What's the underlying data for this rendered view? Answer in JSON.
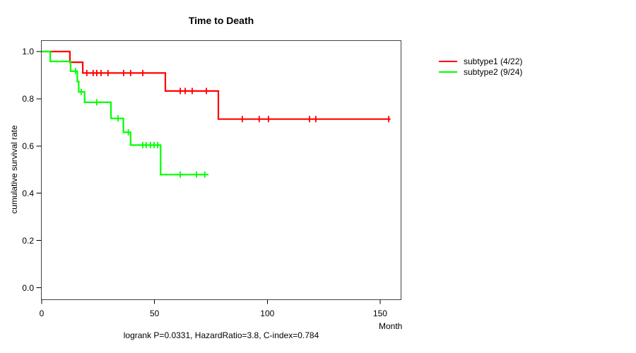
{
  "chart_data": {
    "type": "line",
    "subtype": "kaplan-meier-step-curves",
    "title": "Time to Death",
    "xlabel": "Month",
    "ylabel": "cumulative survival rate",
    "caption": "logrank P=0.0331, HazardRatio=3.8, C-index=0.784",
    "xlim": [
      0,
      160
    ],
    "ylim": [
      0.0,
      1.0
    ],
    "grid": false,
    "legend_position": "right-outside",
    "x_ticks": [
      {
        "value": 0,
        "label": "0"
      },
      {
        "value": 50,
        "label": "50"
      },
      {
        "value": 100,
        "label": "100"
      },
      {
        "value": 150,
        "label": "150"
      }
    ],
    "y_ticks": [
      {
        "value": 1.0,
        "label": "1.0"
      },
      {
        "value": 0.8,
        "label": "0.8"
      },
      {
        "value": 0.6,
        "label": "0.6"
      },
      {
        "value": 0.4,
        "label": "0.4"
      },
      {
        "value": 0.2,
        "label": "0.2"
      },
      {
        "value": 0.0,
        "label": "0.0"
      }
    ],
    "series": [
      {
        "name": "subtype1",
        "legend_label": "subtype1 (4/22)",
        "events_over_n": "4/22",
        "color": "#ff0000",
        "points": [
          [
            0,
            1.0
          ],
          [
            12.5,
            1.0
          ],
          [
            12.5,
            0.955
          ],
          [
            18.2,
            0.955
          ],
          [
            18.2,
            0.909
          ],
          [
            54.8,
            0.909
          ],
          [
            54.8,
            0.833
          ],
          [
            78.3,
            0.833
          ],
          [
            78.3,
            0.714
          ],
          [
            154.6,
            0.714
          ]
        ],
        "censor_marks": [
          [
            20.0,
            0.909
          ],
          [
            22.8,
            0.909
          ],
          [
            24.4,
            0.909
          ],
          [
            26.3,
            0.909
          ],
          [
            29.4,
            0.909
          ],
          [
            36.3,
            0.909
          ],
          [
            39.4,
            0.909
          ],
          [
            44.8,
            0.909
          ],
          [
            61.4,
            0.833
          ],
          [
            63.6,
            0.833
          ],
          [
            66.7,
            0.833
          ],
          [
            73.0,
            0.833
          ],
          [
            88.9,
            0.714
          ],
          [
            96.4,
            0.714
          ],
          [
            100.5,
            0.714
          ],
          [
            118.7,
            0.714
          ],
          [
            121.5,
            0.714
          ],
          [
            153.8,
            0.714
          ]
        ]
      },
      {
        "name": "subtype2",
        "legend_label": "subtype2 (9/24)",
        "events_over_n": "9/24",
        "color": "#00ff00",
        "points": [
          [
            0,
            1.0
          ],
          [
            3.8,
            1.0
          ],
          [
            3.8,
            0.958
          ],
          [
            12.8,
            0.958
          ],
          [
            12.8,
            0.917
          ],
          [
            15.8,
            0.917
          ],
          [
            15.8,
            0.873
          ],
          [
            16.4,
            0.873
          ],
          [
            16.4,
            0.829
          ],
          [
            19.0,
            0.829
          ],
          [
            19.0,
            0.785
          ],
          [
            30.7,
            0.785
          ],
          [
            30.7,
            0.717
          ],
          [
            36.2,
            0.717
          ],
          [
            36.2,
            0.658
          ],
          [
            39.4,
            0.658
          ],
          [
            39.4,
            0.604
          ],
          [
            52.7,
            0.604
          ],
          [
            52.7,
            0.479
          ],
          [
            73.9,
            0.479
          ]
        ],
        "censor_marks": [
          [
            15.0,
            0.917
          ],
          [
            17.5,
            0.829
          ],
          [
            24.4,
            0.785
          ],
          [
            33.8,
            0.717
          ],
          [
            38.4,
            0.658
          ],
          [
            44.8,
            0.604
          ],
          [
            46.3,
            0.604
          ],
          [
            48.2,
            0.604
          ],
          [
            49.8,
            0.604
          ],
          [
            51.4,
            0.604
          ],
          [
            61.4,
            0.479
          ],
          [
            68.6,
            0.479
          ],
          [
            72.3,
            0.479
          ]
        ]
      }
    ],
    "style": {
      "axis_color": "#444444",
      "tick_color": "#000000",
      "text_color": "#000000",
      "background": "#ffffff"
    }
  }
}
